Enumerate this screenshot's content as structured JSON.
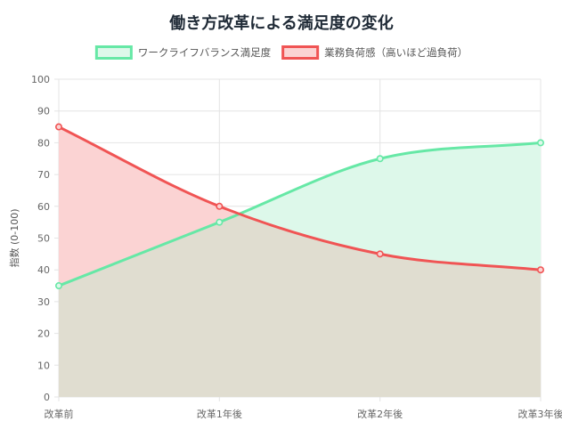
{
  "chart_data": {
    "type": "line",
    "title": "働き方改革による満足度の変化",
    "ylabel": "指数 (0-100)",
    "xlabel": "",
    "categories": [
      "改革前",
      "改革1年後",
      "改革2年後",
      "改革3年後"
    ],
    "ylim": [
      0,
      100
    ],
    "ytick_step": 10,
    "grid": true,
    "legend_position": "top-center",
    "filled_area": true,
    "series": [
      {
        "name": "ワークライフバランス満足度",
        "values": [
          35,
          55,
          75,
          80
        ],
        "color": "#66e8a6",
        "fill": "#ddf8ea"
      },
      {
        "name": "業務負荷感（高いほど過負荷）",
        "values": [
          85,
          60,
          45,
          40
        ],
        "color": "#f05454",
        "fill": "#fbd3d3"
      }
    ],
    "overlap_fill": "#e0ddd0"
  }
}
